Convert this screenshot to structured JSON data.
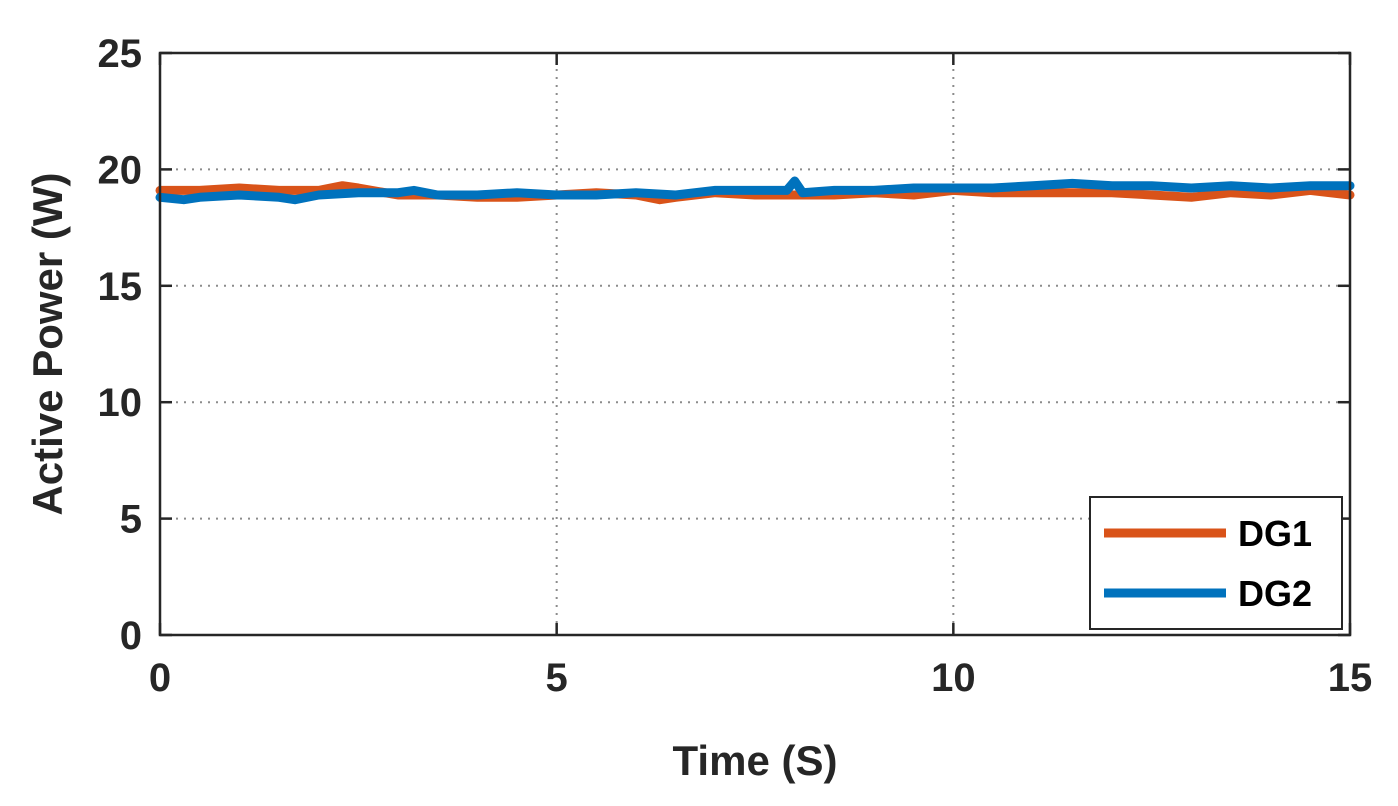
{
  "chart_data": {
    "type": "line",
    "title": "",
    "xlabel": "Time (S)",
    "ylabel": "Active Power (W)",
    "xlim": [
      0,
      15
    ],
    "ylim": [
      0,
      25
    ],
    "xticks": [
      0,
      5,
      10,
      15
    ],
    "yticks": [
      0,
      5,
      10,
      15,
      20,
      25
    ],
    "xtick_labels": [
      "0",
      "5",
      "10",
      "15"
    ],
    "ytick_labels": [
      "0",
      "5",
      "10",
      "15",
      "20",
      "25"
    ],
    "grid": true,
    "legend_position": "bottom-right",
    "series": [
      {
        "name": "DG1",
        "color": "#d95319",
        "x": [
          0,
          0.5,
          1,
          1.5,
          2,
          2.3,
          2.5,
          3,
          3.5,
          4,
          4.5,
          5,
          5.5,
          6,
          6.3,
          6.5,
          7,
          7.5,
          8,
          8.5,
          9,
          9.5,
          10,
          10.5,
          11,
          11.5,
          12,
          12.5,
          13,
          13.5,
          14,
          14.5,
          15
        ],
        "y": [
          19.1,
          19.1,
          19.2,
          19.1,
          19.1,
          19.3,
          19.2,
          18.9,
          18.9,
          18.8,
          18.8,
          18.9,
          19.0,
          18.9,
          18.7,
          18.8,
          19.0,
          18.9,
          18.9,
          18.9,
          19.0,
          18.9,
          19.1,
          19.0,
          19.0,
          19.0,
          19.0,
          18.9,
          18.8,
          19.0,
          18.9,
          19.1,
          18.9
        ]
      },
      {
        "name": "DG2",
        "color": "#0072bd",
        "x": [
          0,
          0.3,
          0.5,
          1,
          1.5,
          1.7,
          2,
          2.5,
          3,
          3.2,
          3.5,
          4,
          4.5,
          5,
          5.5,
          6,
          6.5,
          7,
          7.5,
          7.9,
          8.0,
          8.1,
          8.5,
          9,
          9.5,
          10,
          10.5,
          11,
          11.5,
          12,
          12.5,
          13,
          13.5,
          14,
          14.5,
          15
        ],
        "y": [
          18.8,
          18.7,
          18.8,
          18.9,
          18.8,
          18.7,
          18.9,
          19.0,
          19.0,
          19.1,
          18.9,
          18.9,
          19.0,
          18.9,
          18.9,
          19.0,
          18.9,
          19.1,
          19.1,
          19.1,
          19.5,
          19.0,
          19.1,
          19.1,
          19.2,
          19.2,
          19.2,
          19.3,
          19.4,
          19.3,
          19.3,
          19.2,
          19.3,
          19.2,
          19.3,
          19.3
        ]
      }
    ]
  }
}
